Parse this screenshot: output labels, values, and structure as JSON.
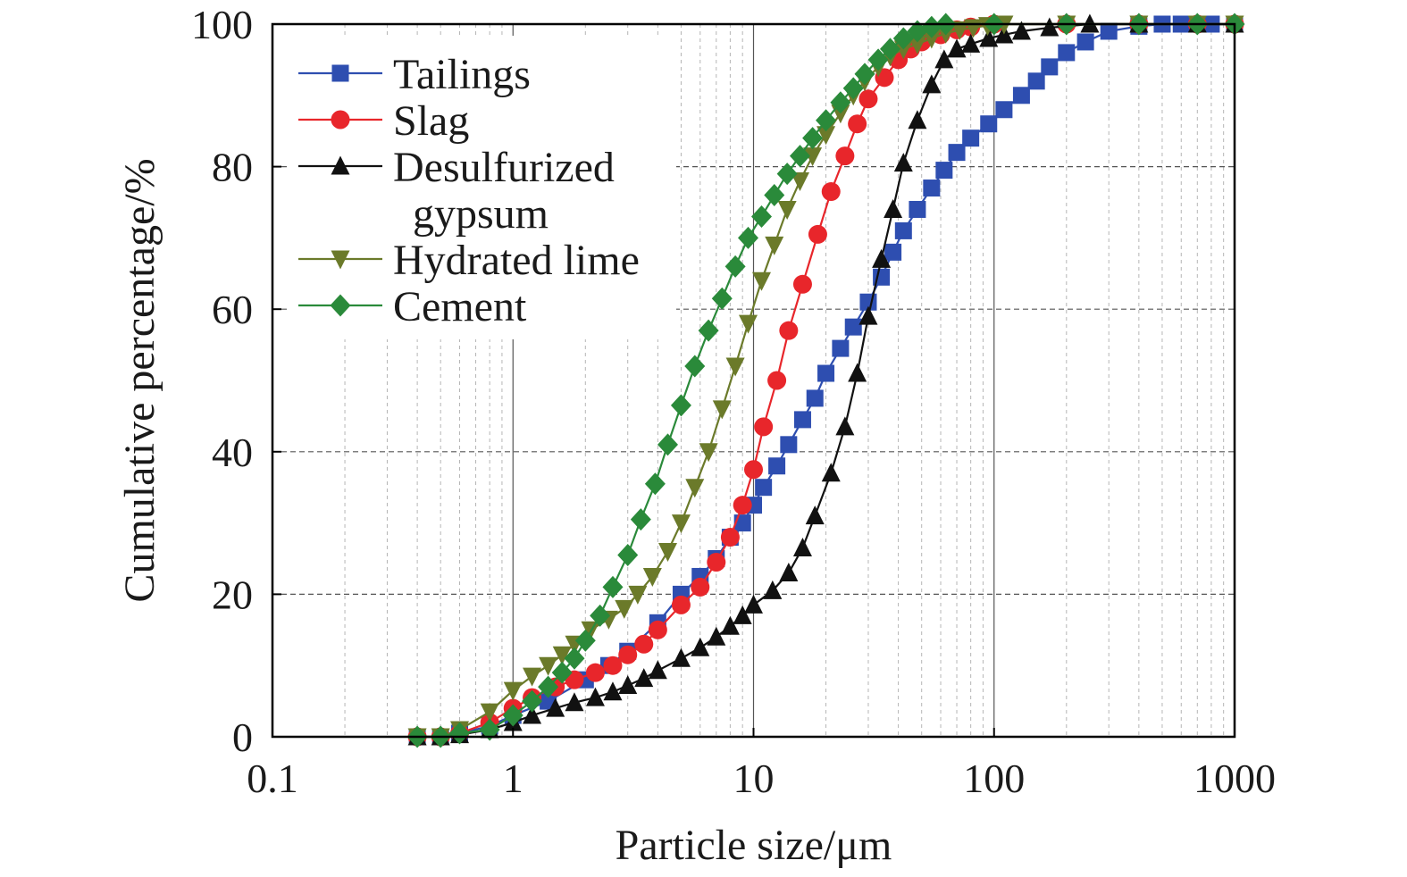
{
  "chart_data": {
    "type": "line",
    "xlabel": "Particle size/μm",
    "ylabel": "Cumulative percentage/%",
    "xscale": "log",
    "xlim": [
      0.1,
      1000
    ],
    "ylim": [
      0,
      100
    ],
    "xticks": [
      {
        "value": 0.1,
        "label": "0.1"
      },
      {
        "value": 1,
        "label": "1"
      },
      {
        "value": 10,
        "label": "10"
      },
      {
        "value": 100,
        "label": "100"
      },
      {
        "value": 1000,
        "label": "1000"
      }
    ],
    "yticks": [
      {
        "value": 0,
        "label": "0"
      },
      {
        "value": 20,
        "label": "20"
      },
      {
        "value": 40,
        "label": "40"
      },
      {
        "value": 60,
        "label": "60"
      },
      {
        "value": 80,
        "label": "80"
      },
      {
        "value": 100,
        "label": "100"
      }
    ],
    "grid": true,
    "legend_position": "top-left",
    "series": [
      {
        "name": "Tailings",
        "color": "#2e4eb0",
        "marker": "square",
        "points": [
          [
            0.4,
            0
          ],
          [
            0.5,
            0
          ],
          [
            0.6,
            0.5
          ],
          [
            0.8,
            1.5
          ],
          [
            1.0,
            3
          ],
          [
            1.4,
            5
          ],
          [
            2.0,
            8
          ],
          [
            2.5,
            10
          ],
          [
            3.0,
            12
          ],
          [
            4.0,
            16
          ],
          [
            5.0,
            20
          ],
          [
            6.0,
            22.5
          ],
          [
            7.0,
            25
          ],
          [
            8.0,
            28
          ],
          [
            9.0,
            30
          ],
          [
            10,
            32.5
          ],
          [
            11,
            35
          ],
          [
            12.5,
            38
          ],
          [
            14,
            41
          ],
          [
            16,
            44.5
          ],
          [
            18,
            47.5
          ],
          [
            20,
            51
          ],
          [
            23,
            54.5
          ],
          [
            26,
            57.5
          ],
          [
            30,
            61
          ],
          [
            34,
            64.5
          ],
          [
            38,
            68
          ],
          [
            42,
            71
          ],
          [
            48,
            74
          ],
          [
            55,
            77
          ],
          [
            62,
            79.5
          ],
          [
            70,
            82
          ],
          [
            80,
            84
          ],
          [
            95,
            86
          ],
          [
            110,
            88
          ],
          [
            130,
            90
          ],
          [
            150,
            92
          ],
          [
            170,
            94
          ],
          [
            200,
            96
          ],
          [
            240,
            97.5
          ],
          [
            300,
            99
          ],
          [
            400,
            99.7
          ],
          [
            500,
            100
          ],
          [
            600,
            100
          ],
          [
            800,
            100
          ],
          [
            1000,
            100
          ]
        ]
      },
      {
        "name": "Slag",
        "color": "#e8262b",
        "marker": "circle",
        "points": [
          [
            0.4,
            0
          ],
          [
            0.5,
            0
          ],
          [
            0.6,
            0.5
          ],
          [
            0.8,
            2
          ],
          [
            1.0,
            4
          ],
          [
            1.2,
            5.5
          ],
          [
            1.5,
            7
          ],
          [
            1.8,
            8
          ],
          [
            2.2,
            9
          ],
          [
            2.6,
            10
          ],
          [
            3.0,
            11.5
          ],
          [
            3.5,
            13
          ],
          [
            4.0,
            15
          ],
          [
            5.0,
            18.5
          ],
          [
            6.0,
            21
          ],
          [
            7.0,
            24.5
          ],
          [
            8.0,
            28
          ],
          [
            9.0,
            32.5
          ],
          [
            10,
            37.5
          ],
          [
            11,
            43.5
          ],
          [
            12.5,
            50
          ],
          [
            14,
            57
          ],
          [
            16,
            63.5
          ],
          [
            18.5,
            70.5
          ],
          [
            21,
            76.5
          ],
          [
            24,
            81.5
          ],
          [
            27,
            86
          ],
          [
            30,
            89.5
          ],
          [
            35,
            92.5
          ],
          [
            40,
            95
          ],
          [
            45,
            96.5
          ],
          [
            50,
            97.5
          ],
          [
            60,
            98.5
          ],
          [
            70,
            99.2
          ],
          [
            80,
            99.6
          ],
          [
            100,
            100
          ],
          [
            200,
            100
          ],
          [
            400,
            100
          ],
          [
            700,
            100
          ],
          [
            1000,
            100
          ]
        ]
      },
      {
        "name": "Desulfurized\ngypsum",
        "color": "#111111",
        "marker": "triangle-up",
        "points": [
          [
            0.4,
            0
          ],
          [
            0.5,
            0
          ],
          [
            0.6,
            0.3
          ],
          [
            0.8,
            1
          ],
          [
            1.0,
            2
          ],
          [
            1.2,
            3
          ],
          [
            1.5,
            4
          ],
          [
            1.8,
            4.8
          ],
          [
            2.2,
            5.5
          ],
          [
            2.6,
            6.3
          ],
          [
            3.0,
            7.2
          ],
          [
            3.5,
            8.2
          ],
          [
            4.0,
            9.3
          ],
          [
            5.0,
            11
          ],
          [
            6.0,
            12.5
          ],
          [
            7.0,
            14
          ],
          [
            8.0,
            15.5
          ],
          [
            9.0,
            17
          ],
          [
            10,
            18.5
          ],
          [
            12,
            20.5
          ],
          [
            14,
            23
          ],
          [
            16,
            26.5
          ],
          [
            18,
            31
          ],
          [
            21,
            37
          ],
          [
            24,
            43.5
          ],
          [
            27,
            51
          ],
          [
            30,
            59
          ],
          [
            34,
            67
          ],
          [
            38,
            74
          ],
          [
            42,
            80.5
          ],
          [
            48,
            86.5
          ],
          [
            55,
            91.5
          ],
          [
            62,
            95
          ],
          [
            70,
            96.5
          ],
          [
            80,
            97.2
          ],
          [
            95,
            98
          ],
          [
            110,
            98.5
          ],
          [
            130,
            99
          ],
          [
            170,
            99.5
          ],
          [
            250,
            100
          ],
          [
            400,
            100
          ],
          [
            700,
            100
          ],
          [
            1000,
            100
          ]
        ]
      },
      {
        "name": "Hydrated lime",
        "color": "#6b7a2a",
        "marker": "triangle-down",
        "points": [
          [
            0.4,
            0
          ],
          [
            0.5,
            0
          ],
          [
            0.6,
            1
          ],
          [
            0.8,
            3.5
          ],
          [
            1.0,
            6.5
          ],
          [
            1.2,
            8.5
          ],
          [
            1.4,
            10
          ],
          [
            1.6,
            11.5
          ],
          [
            1.8,
            13
          ],
          [
            2.1,
            15
          ],
          [
            2.5,
            16.5
          ],
          [
            2.9,
            18
          ],
          [
            3.3,
            20
          ],
          [
            3.8,
            22.5
          ],
          [
            4.4,
            26
          ],
          [
            5.0,
            30
          ],
          [
            5.7,
            35
          ],
          [
            6.5,
            40
          ],
          [
            7.4,
            46
          ],
          [
            8.4,
            52
          ],
          [
            9.5,
            58
          ],
          [
            10.8,
            64
          ],
          [
            12.2,
            69
          ],
          [
            13.8,
            74
          ],
          [
            15.6,
            78
          ],
          [
            17.6,
            81.5
          ],
          [
            20,
            84.5
          ],
          [
            23,
            87.5
          ],
          [
            26,
            90
          ],
          [
            29,
            92
          ],
          [
            33,
            94
          ],
          [
            37,
            95.5
          ],
          [
            42,
            96.5
          ],
          [
            48,
            97.2
          ],
          [
            55,
            98
          ],
          [
            63,
            98.7
          ],
          [
            72,
            99.2
          ],
          [
            82,
            99.5
          ],
          [
            94,
            99.8
          ],
          [
            110,
            100
          ],
          [
            200,
            100
          ],
          [
            400,
            100
          ],
          [
            700,
            100
          ],
          [
            1000,
            100
          ]
        ]
      },
      {
        "name": "Cement",
        "color": "#2a8a3a",
        "marker": "diamond",
        "points": [
          [
            0.4,
            0
          ],
          [
            0.5,
            0
          ],
          [
            0.6,
            0.5
          ],
          [
            0.8,
            1
          ],
          [
            1.0,
            3
          ],
          [
            1.2,
            5
          ],
          [
            1.4,
            7
          ],
          [
            1.6,
            9
          ],
          [
            1.8,
            11
          ],
          [
            2.0,
            13.5
          ],
          [
            2.3,
            17
          ],
          [
            2.6,
            21
          ],
          [
            3.0,
            25.5
          ],
          [
            3.4,
            30.5
          ],
          [
            3.9,
            35.5
          ],
          [
            4.4,
            41
          ],
          [
            5.0,
            46.5
          ],
          [
            5.7,
            52
          ],
          [
            6.5,
            57
          ],
          [
            7.4,
            61.5
          ],
          [
            8.4,
            66
          ],
          [
            9.5,
            70
          ],
          [
            10.8,
            73
          ],
          [
            12.2,
            76
          ],
          [
            13.8,
            79
          ],
          [
            15.6,
            81.5
          ],
          [
            17.6,
            84
          ],
          [
            20,
            86.5
          ],
          [
            23,
            89
          ],
          [
            26,
            91
          ],
          [
            29,
            93
          ],
          [
            33,
            95
          ],
          [
            37,
            96.5
          ],
          [
            42,
            98
          ],
          [
            48,
            99
          ],
          [
            55,
            99.6
          ],
          [
            63,
            100
          ],
          [
            100,
            100
          ],
          [
            200,
            100
          ],
          [
            400,
            100
          ],
          [
            700,
            100
          ],
          [
            1000,
            100
          ]
        ]
      }
    ]
  }
}
